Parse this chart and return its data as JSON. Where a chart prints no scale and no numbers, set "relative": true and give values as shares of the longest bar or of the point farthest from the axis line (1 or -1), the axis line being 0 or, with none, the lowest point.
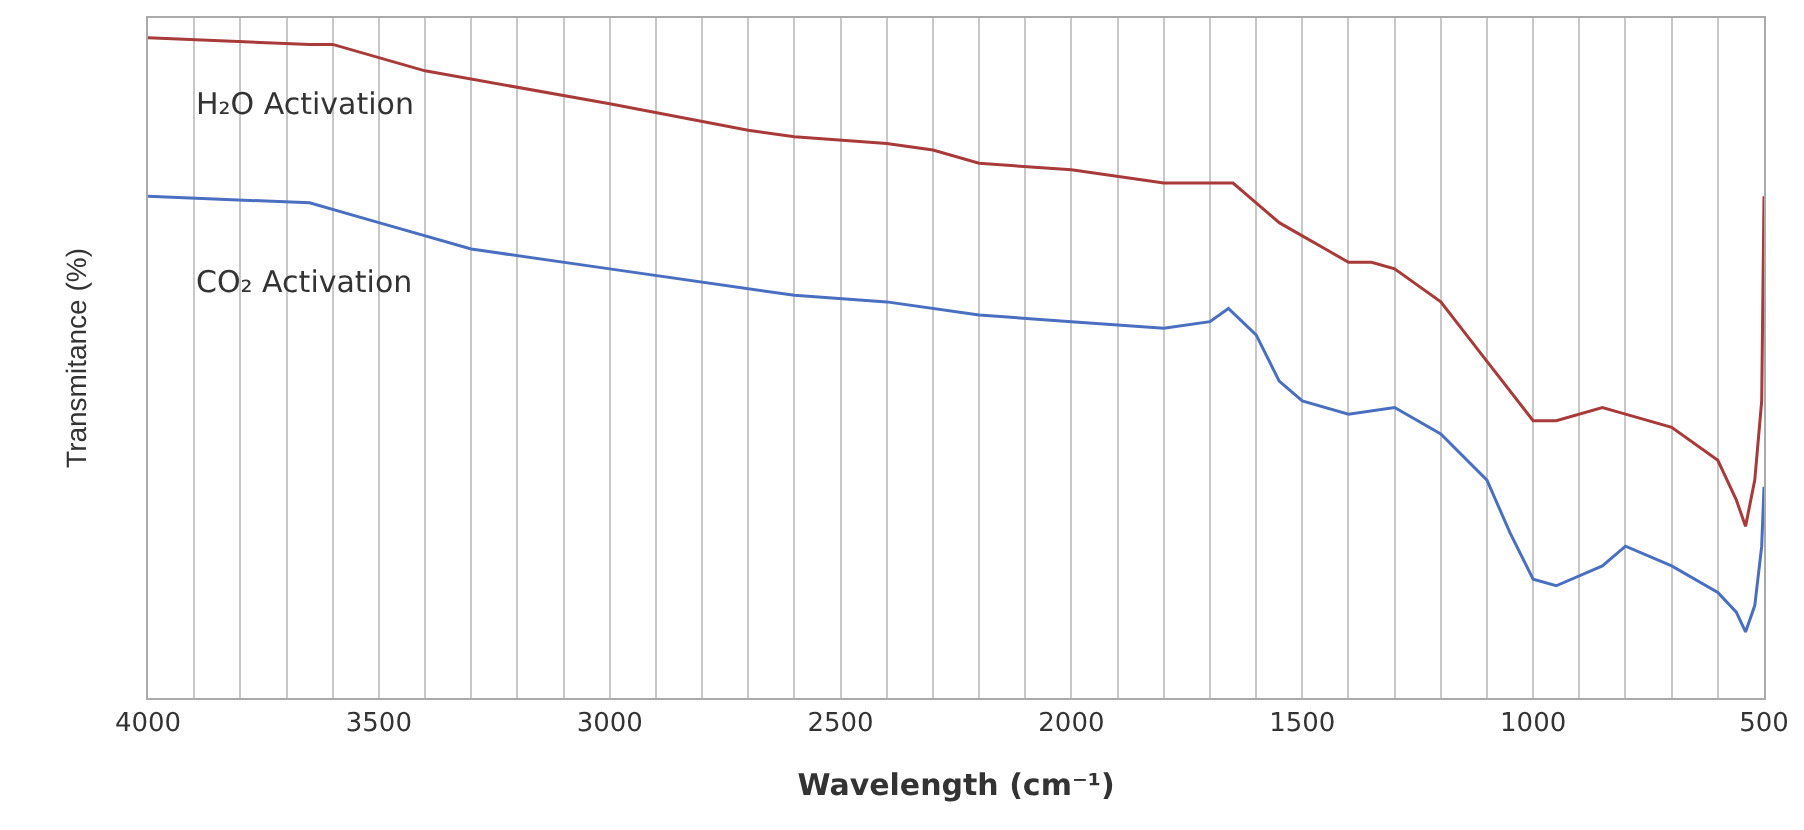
{
  "chart_data": {
    "type": "line",
    "relative": true,
    "xlabel": "Wavelength (cm⁻¹)",
    "ylabel": "Transmitance (%)",
    "xlim": [
      4000,
      500
    ],
    "xticks": [
      4000,
      {
        "value": 3900,
        "label": null
      },
      {
        "value": 3800,
        "label": null
      },
      {
        "value": 3700,
        "label": null
      },
      {
        "value": 3600,
        "label": null
      },
      3500,
      {
        "value": 3400,
        "label": null
      },
      {
        "value": 3300,
        "label": null
      },
      {
        "value": 3200,
        "label": null
      },
      {
        "value": 3100,
        "label": null
      },
      3000,
      {
        "value": 2900,
        "label": null
      },
      {
        "value": 2800,
        "label": null
      },
      {
        "value": 2700,
        "label": null
      },
      {
        "value": 2600,
        "label": null
      },
      2500,
      {
        "value": 2400,
        "label": null
      },
      {
        "value": 2300,
        "label": null
      },
      {
        "value": 2200,
        "label": null
      },
      {
        "value": 2100,
        "label": null
      },
      2000,
      {
        "value": 1900,
        "label": null
      },
      {
        "value": 1800,
        "label": null
      },
      {
        "value": 1700,
        "label": null
      },
      {
        "value": 1600,
        "label": null
      },
      1500,
      {
        "value": 1400,
        "label": null
      },
      {
        "value": 1300,
        "label": null
      },
      {
        "value": 1200,
        "label": null
      },
      {
        "value": 1100,
        "label": null
      },
      1000,
      {
        "value": 900,
        "label": null
      },
      {
        "value": 800,
        "label": null
      },
      {
        "value": 700,
        "label": null
      },
      {
        "value": 600,
        "label": null
      },
      500
    ],
    "grid": "x",
    "marker": "none",
    "line_style": "solid",
    "x": [
      4000,
      3650,
      3600,
      3400,
      3000,
      2700,
      2600,
      2400,
      2300,
      2200,
      2000,
      1800,
      1700,
      1650,
      1600,
      1550,
      1500,
      1450,
      1400,
      1350,
      1300,
      1200,
      1100,
      1000,
      950,
      850,
      800,
      700,
      600,
      560,
      540,
      520,
      505,
      500
    ],
    "series": [
      {
        "name": "H₂O Activation",
        "color": "#a83a3a",
        "values": [
          1.0,
          0.99,
          0.99,
          0.95,
          0.9,
          0.86,
          0.85,
          0.84,
          0.83,
          0.81,
          0.8,
          0.78,
          0.78,
          0.78,
          0.75,
          0.72,
          0.7,
          0.68,
          0.66,
          0.66,
          0.65,
          0.6,
          0.51,
          0.42,
          0.42,
          0.44,
          0.43,
          0.41,
          0.36,
          0.3,
          0.26,
          0.33,
          0.45,
          0.76
        ]
      },
      {
        "name": "CO₂ Activation",
        "color": "#4a6fc0",
        "x": [
          4000,
          3650,
          3500,
          3300,
          3000,
          2600,
          2400,
          2200,
          2000,
          1800,
          1700,
          1660,
          1600,
          1550,
          1500,
          1400,
          1300,
          1200,
          1100,
          1050,
          1000,
          950,
          850,
          800,
          700,
          600,
          560,
          540,
          520,
          505,
          500
        ],
        "values": [
          0.76,
          0.75,
          0.72,
          0.68,
          0.65,
          0.61,
          0.6,
          0.58,
          0.57,
          0.56,
          0.57,
          0.59,
          0.55,
          0.48,
          0.45,
          0.43,
          0.44,
          0.4,
          0.33,
          0.25,
          0.18,
          0.17,
          0.2,
          0.23,
          0.2,
          0.16,
          0.13,
          0.1,
          0.14,
          0.23,
          0.32
        ]
      }
    ]
  }
}
